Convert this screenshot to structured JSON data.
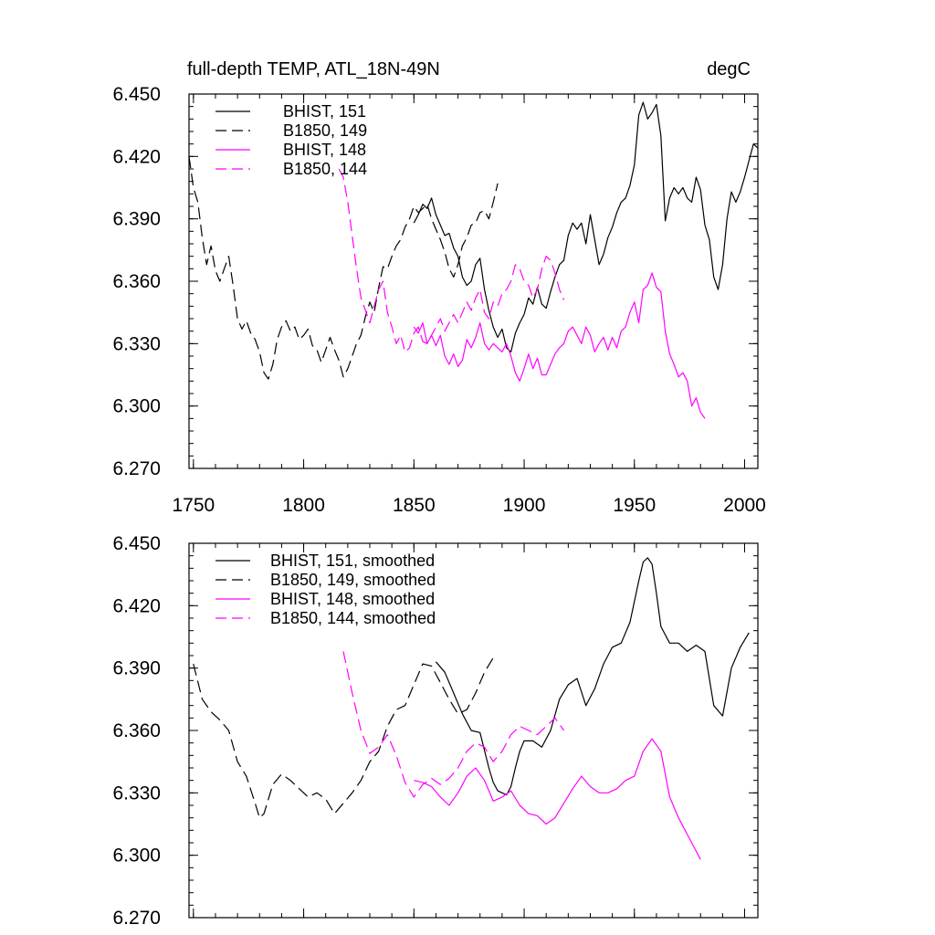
{
  "chart_data": [
    {
      "type": "line",
      "title": "full-depth TEMP, ATL_18N-49N",
      "units": "degC",
      "xlim": [
        1748,
        2006
      ],
      "ylim": [
        6.27,
        6.45
      ],
      "yticks": [
        "6.270",
        "6.300",
        "6.330",
        "6.360",
        "6.390",
        "6.420",
        "6.450"
      ],
      "xticks": [
        "1750",
        "1800",
        "1850",
        "1900",
        "1950",
        "2000"
      ],
      "legend_position": "top-left",
      "series": [
        {
          "name": "BHIST, 151",
          "color": "#000000",
          "dash": "solid",
          "x": [
            1850,
            1852,
            1854,
            1856,
            1858,
            1860,
            1862,
            1864,
            1866,
            1868,
            1870,
            1872,
            1874,
            1876,
            1878,
            1880,
            1882,
            1884,
            1886,
            1888,
            1890,
            1892,
            1894,
            1896,
            1898,
            1900,
            1902,
            1904,
            1906,
            1908,
            1910,
            1912,
            1914,
            1916,
            1918,
            1920,
            1922,
            1924,
            1926,
            1928,
            1930,
            1932,
            1934,
            1936,
            1938,
            1940,
            1942,
            1944,
            1946,
            1948,
            1950,
            1952,
            1954,
            1956,
            1958,
            1960,
            1962,
            1964,
            1966,
            1968,
            1970,
            1972,
            1974,
            1976,
            1978,
            1980,
            1982,
            1984,
            1986,
            1988,
            1990,
            1992,
            1994,
            1996,
            1998,
            2000,
            2002,
            2004,
            2006
          ],
          "y": [
            6.388,
            6.392,
            6.397,
            6.395,
            6.4,
            6.392,
            6.387,
            6.382,
            6.383,
            6.376,
            6.372,
            6.362,
            6.358,
            6.36,
            6.368,
            6.371,
            6.356,
            6.346,
            6.338,
            6.333,
            6.337,
            6.328,
            6.326,
            6.335,
            6.34,
            6.344,
            6.352,
            6.349,
            6.357,
            6.349,
            6.347,
            6.355,
            6.362,
            6.368,
            6.37,
            6.382,
            6.388,
            6.385,
            6.388,
            6.378,
            6.392,
            6.38,
            6.368,
            6.373,
            6.381,
            6.386,
            6.393,
            6.398,
            6.4,
            6.406,
            6.416,
            6.44,
            6.446,
            6.438,
            6.441,
            6.445,
            6.43,
            6.389,
            6.4,
            6.405,
            6.402,
            6.405,
            6.4,
            6.398,
            6.41,
            6.404,
            6.387,
            6.38,
            6.362,
            6.356,
            6.368,
            6.39,
            6.403,
            6.398,
            6.403,
            6.41,
            6.418,
            6.426,
            6.424
          ]
        },
        {
          "name": "B1850, 149",
          "color": "#000000",
          "dash": "dashed",
          "x": [
            1748,
            1750,
            1752,
            1754,
            1756,
            1758,
            1760,
            1762,
            1764,
            1766,
            1768,
            1770,
            1772,
            1774,
            1776,
            1778,
            1780,
            1782,
            1784,
            1786,
            1788,
            1790,
            1792,
            1794,
            1796,
            1798,
            1800,
            1802,
            1804,
            1806,
            1808,
            1810,
            1812,
            1814,
            1816,
            1818,
            1820,
            1822,
            1824,
            1826,
            1828,
            1830,
            1832,
            1834,
            1836,
            1838,
            1840,
            1842,
            1844,
            1846,
            1848,
            1850,
            1852,
            1854,
            1856,
            1858,
            1860,
            1862,
            1864,
            1866,
            1868,
            1870,
            1872,
            1874,
            1876,
            1878,
            1880,
            1882,
            1884,
            1886,
            1888
          ],
          "y": [
            6.42,
            6.405,
            6.398,
            6.381,
            6.368,
            6.377,
            6.365,
            6.36,
            6.366,
            6.372,
            6.358,
            6.342,
            6.337,
            6.341,
            6.335,
            6.332,
            6.326,
            6.316,
            6.313,
            6.32,
            6.332,
            6.338,
            6.341,
            6.336,
            6.338,
            6.332,
            6.334,
            6.337,
            6.329,
            6.327,
            6.321,
            6.327,
            6.333,
            6.327,
            6.322,
            6.314,
            6.318,
            6.324,
            6.33,
            6.334,
            6.343,
            6.35,
            6.345,
            6.357,
            6.367,
            6.366,
            6.372,
            6.377,
            6.38,
            6.386,
            6.39,
            6.396,
            6.393,
            6.395,
            6.397,
            6.39,
            6.385,
            6.38,
            6.374,
            6.366,
            6.362,
            6.368,
            6.377,
            6.381,
            6.387,
            6.388,
            6.393,
            6.394,
            6.39,
            6.398,
            6.407
          ]
        },
        {
          "name": "BHIST, 148",
          "color": "#ff00ff",
          "dash": "solid",
          "x": [
            1850,
            1852,
            1854,
            1856,
            1858,
            1860,
            1862,
            1864,
            1866,
            1868,
            1870,
            1872,
            1874,
            1876,
            1878,
            1880,
            1882,
            1884,
            1886,
            1888,
            1890,
            1892,
            1894,
            1896,
            1898,
            1900,
            1902,
            1904,
            1906,
            1908,
            1910,
            1912,
            1914,
            1916,
            1918,
            1920,
            1922,
            1924,
            1926,
            1928,
            1930,
            1932,
            1934,
            1936,
            1938,
            1940,
            1942,
            1944,
            1946,
            1948,
            1950,
            1952,
            1954,
            1956,
            1958,
            1960,
            1962,
            1964,
            1966,
            1968,
            1970,
            1972,
            1974,
            1976,
            1978,
            1980,
            1982
          ],
          "y": [
            6.338,
            6.335,
            6.34,
            6.33,
            6.334,
            6.329,
            6.334,
            6.324,
            6.32,
            6.325,
            6.319,
            6.322,
            6.332,
            6.328,
            6.333,
            6.34,
            6.33,
            6.327,
            6.33,
            6.328,
            6.326,
            6.33,
            6.324,
            6.316,
            6.312,
            6.318,
            6.325,
            6.318,
            6.323,
            6.315,
            6.315,
            6.32,
            6.325,
            6.328,
            6.33,
            6.336,
            6.338,
            6.334,
            6.33,
            6.338,
            6.334,
            6.326,
            6.33,
            6.333,
            6.327,
            6.333,
            6.328,
            6.336,
            6.338,
            6.345,
            6.35,
            6.34,
            6.356,
            6.358,
            6.364,
            6.357,
            6.355,
            6.336,
            6.325,
            6.32,
            6.314,
            6.316,
            6.312,
            6.3,
            6.304,
            6.297,
            6.294
          ]
        },
        {
          "name": "B1850, 144",
          "color": "#ff00ff",
          "dash": "dashed",
          "x": [
            1816,
            1818,
            1820,
            1822,
            1824,
            1826,
            1828,
            1830,
            1832,
            1834,
            1836,
            1838,
            1840,
            1842,
            1844,
            1846,
            1848,
            1850,
            1852,
            1854,
            1856,
            1858,
            1860,
            1862,
            1864,
            1866,
            1868,
            1870,
            1872,
            1874,
            1876,
            1878,
            1880,
            1882,
            1884,
            1886,
            1888,
            1890,
            1892,
            1894,
            1896,
            1898,
            1900,
            1902,
            1904,
            1906,
            1908,
            1910,
            1912,
            1914,
            1916,
            1918
          ],
          "y": [
            6.414,
            6.41,
            6.398,
            6.382,
            6.366,
            6.352,
            6.346,
            6.34,
            6.348,
            6.356,
            6.36,
            6.345,
            6.338,
            6.33,
            6.334,
            6.326,
            6.328,
            6.335,
            6.338,
            6.331,
            6.33,
            6.334,
            6.338,
            6.342,
            6.336,
            6.34,
            6.344,
            6.34,
            6.345,
            6.35,
            6.346,
            6.352,
            6.356,
            6.345,
            6.342,
            6.35,
            6.348,
            6.354,
            6.356,
            6.36,
            6.368,
            6.366,
            6.36,
            6.358,
            6.352,
            6.356,
            6.366,
            6.372,
            6.37,
            6.364,
            6.356,
            6.351
          ]
        }
      ]
    },
    {
      "type": "line",
      "xlim": [
        1748,
        2006
      ],
      "ylim": [
        6.27,
        6.45
      ],
      "yticks": [
        "6.270",
        "6.300",
        "6.330",
        "6.360",
        "6.390",
        "6.420",
        "6.450"
      ],
      "legend_position": "top-left",
      "series": [
        {
          "name": "BHIST, 151, smoothed",
          "color": "#000000",
          "dash": "solid",
          "x": [
            1860,
            1864,
            1868,
            1872,
            1876,
            1880,
            1884,
            1886,
            1888,
            1890,
            1892,
            1894,
            1896,
            1898,
            1900,
            1904,
            1908,
            1912,
            1916,
            1920,
            1924,
            1928,
            1932,
            1936,
            1940,
            1944,
            1948,
            1952,
            1954,
            1956,
            1958,
            1960,
            1962,
            1966,
            1970,
            1974,
            1978,
            1982,
            1986,
            1990,
            1994,
            1998,
            2002
          ],
          "y": [
            6.393,
            6.388,
            6.378,
            6.368,
            6.36,
            6.359,
            6.342,
            6.335,
            6.331,
            6.33,
            6.329,
            6.333,
            6.342,
            6.35,
            6.355,
            6.355,
            6.352,
            6.36,
            6.375,
            6.382,
            6.385,
            6.372,
            6.38,
            6.392,
            6.4,
            6.402,
            6.412,
            6.432,
            6.441,
            6.443,
            6.44,
            6.426,
            6.41,
            6.402,
            6.402,
            6.398,
            6.401,
            6.398,
            6.372,
            6.367,
            6.39,
            6.4,
            6.407
          ]
        },
        {
          "name": "B1850, 149, smoothed",
          "color": "#000000",
          "dash": "dashed",
          "x": [
            1750,
            1754,
            1758,
            1762,
            1766,
            1770,
            1774,
            1778,
            1780,
            1782,
            1786,
            1790,
            1794,
            1798,
            1802,
            1806,
            1810,
            1814,
            1818,
            1822,
            1826,
            1830,
            1834,
            1838,
            1842,
            1846,
            1850,
            1854,
            1858,
            1862,
            1866,
            1870,
            1874,
            1878,
            1882,
            1886
          ],
          "y": [
            6.392,
            6.375,
            6.369,
            6.365,
            6.36,
            6.345,
            6.338,
            6.325,
            6.318,
            6.32,
            6.334,
            6.339,
            6.336,
            6.332,
            6.328,
            6.33,
            6.327,
            6.32,
            6.325,
            6.33,
            6.336,
            6.345,
            6.35,
            6.362,
            6.37,
            6.372,
            6.382,
            6.392,
            6.391,
            6.383,
            6.375,
            6.368,
            6.37,
            6.378,
            6.388,
            6.395
          ]
        },
        {
          "name": "BHIST, 148, smoothed",
          "color": "#ff00ff",
          "dash": "solid",
          "x": [
            1850,
            1854,
            1858,
            1862,
            1866,
            1870,
            1874,
            1878,
            1882,
            1886,
            1890,
            1894,
            1898,
            1902,
            1906,
            1910,
            1914,
            1918,
            1922,
            1926,
            1930,
            1934,
            1938,
            1942,
            1946,
            1950,
            1954,
            1958,
            1962,
            1966,
            1970,
            1974,
            1978,
            1980
          ],
          "y": [
            6.336,
            6.335,
            6.333,
            6.328,
            6.324,
            6.33,
            6.338,
            6.342,
            6.336,
            6.326,
            6.328,
            6.331,
            6.324,
            6.32,
            6.319,
            6.315,
            6.318,
            6.325,
            6.332,
            6.338,
            6.333,
            6.33,
            6.33,
            6.332,
            6.336,
            6.338,
            6.35,
            6.356,
            6.35,
            6.328,
            6.318,
            6.31,
            6.302,
            6.298
          ]
        },
        {
          "name": "B1850, 144, smoothed",
          "color": "#ff00ff",
          "dash": "dashed",
          "x": [
            1818,
            1822,
            1826,
            1830,
            1834,
            1838,
            1842,
            1846,
            1850,
            1854,
            1858,
            1862,
            1866,
            1870,
            1874,
            1878,
            1882,
            1886,
            1890,
            1894,
            1898,
            1902,
            1906,
            1910,
            1914,
            1918
          ],
          "y": [
            6.398,
            6.378,
            6.36,
            6.349,
            6.352,
            6.358,
            6.348,
            6.335,
            6.328,
            6.334,
            6.337,
            6.334,
            6.337,
            6.342,
            6.35,
            6.354,
            6.352,
            6.345,
            6.35,
            6.358,
            6.362,
            6.36,
            6.358,
            6.362,
            6.366,
            6.36
          ]
        }
      ]
    }
  ]
}
